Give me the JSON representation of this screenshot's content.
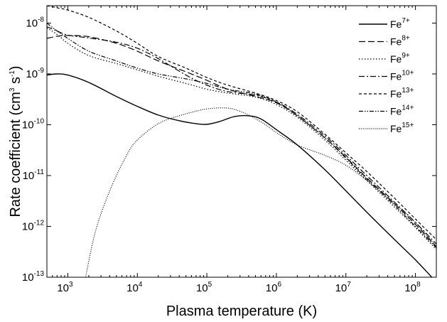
{
  "chart_data": {
    "type": "line",
    "title": "",
    "xlabel": "Plasma temperature (K)",
    "ylabel_parts": {
      "main": "Rate coefficient (cm",
      "sup1": "3",
      "mid": " s",
      "sup2": "-1",
      "end": ")"
    },
    "x_scale": "log",
    "y_scale": "log",
    "xlim": [
      500,
      200000000
    ],
    "ylim": [
      1e-13,
      2.2e-08
    ],
    "x_ticks": [
      {
        "value": 1000,
        "base": "10",
        "exp": "3"
      },
      {
        "value": 10000,
        "base": "10",
        "exp": "4"
      },
      {
        "value": 100000,
        "base": "10",
        "exp": "5"
      },
      {
        "value": 1000000,
        "base": "10",
        "exp": "6"
      },
      {
        "value": 10000000,
        "base": "10",
        "exp": "7"
      },
      {
        "value": 100000000,
        "base": "10",
        "exp": "8"
      }
    ],
    "y_ticks": [
      {
        "value": 1e-13,
        "base": "10",
        "exp": "-13"
      },
      {
        "value": 1e-12,
        "base": "10",
        "exp": "-12"
      },
      {
        "value": 1e-11,
        "base": "10",
        "exp": "-11"
      },
      {
        "value": 1e-10,
        "base": "10",
        "exp": "-10"
      },
      {
        "value": 1e-09,
        "base": "10",
        "exp": "-9"
      },
      {
        "value": 1e-08,
        "base": "10",
        "exp": "-8"
      }
    ],
    "grid": false,
    "legend_position": "top-right",
    "series": [
      {
        "name": "Fe",
        "charge": "7+",
        "dash": "solid",
        "x": [
          500,
          700,
          1000,
          2000,
          5000,
          10000,
          20000,
          40000,
          70000,
          100000,
          150000,
          250000,
          400000,
          600000,
          1000000,
          2000000,
          5000000,
          10000000,
          20000000,
          50000000,
          100000000,
          200000000
        ],
        "y": [
          9.5e-10,
          1e-09,
          9.5e-10,
          6.8e-10,
          3.6e-10,
          2.3e-10,
          1.55e-10,
          1.2e-10,
          1.05e-10,
          1.02e-10,
          1.15e-10,
          1.45e-10,
          1.5e-10,
          1.3e-10,
          8e-11,
          4e-11,
          1.3e-11,
          5e-12,
          1.9e-12,
          5.5e-13,
          2.2e-13,
          8e-14
        ]
      },
      {
        "name": "Fe",
        "charge": "8+",
        "dash": "long-dash",
        "x": [
          500,
          700,
          1000,
          2000,
          5000,
          10000,
          20000,
          50000,
          100000,
          200000,
          500000,
          1000000,
          2000000,
          5000000,
          10000000,
          20000000,
          50000000,
          100000000,
          200000000
        ],
        "y": [
          5e-09,
          5.5e-09,
          5.7e-09,
          5.4e-09,
          4e-09,
          2.8e-09,
          1.8e-09,
          1.1e-09,
          7.5e-10,
          5e-10,
          3.6e-10,
          2.7e-10,
          1.5e-10,
          5.5e-11,
          2.3e-11,
          9e-12,
          2.8e-12,
          1.1e-12,
          4e-13
        ]
      },
      {
        "name": "Fe",
        "charge": "9+",
        "dash": "dotted",
        "x": [
          500,
          700,
          1000,
          2000,
          5000,
          10000,
          20000,
          50000,
          100000,
          200000,
          500000,
          1000000,
          2000000,
          5000000,
          10000000,
          20000000,
          50000000,
          100000000,
          200000000
        ],
        "y": [
          8e-09,
          6e-09,
          4e-09,
          2.3e-09,
          1.6e-09,
          1.2e-09,
          9e-10,
          6.5e-10,
          5e-10,
          4.2e-10,
          3.5e-10,
          2.5e-10,
          1.4e-10,
          5e-11,
          2e-11,
          8e-12,
          2.4e-12,
          9.5e-13,
          3.5e-13
        ]
      },
      {
        "name": "Fe",
        "charge": "10+",
        "dash": "dash-dot",
        "x": [
          500,
          700,
          1000,
          2000,
          5000,
          10000,
          20000,
          50000,
          100000,
          200000,
          500000,
          1000000,
          2000000,
          5000000,
          10000000,
          20000000,
          50000000,
          100000000,
          200000000
        ],
        "y": [
          8.5e-09,
          7e-09,
          5.8e-09,
          5.1e-09,
          4.2e-09,
          3.2e-09,
          2e-09,
          9.5e-10,
          6e-10,
          4.5e-10,
          3.8e-10,
          2.8e-10,
          1.6e-10,
          6e-11,
          2.5e-11,
          1e-11,
          3e-12,
          1.2e-12,
          4.5e-13
        ]
      },
      {
        "name": "Fe",
        "charge": "13+",
        "dash": "short-dash",
        "x": [
          500,
          700,
          1000,
          2000,
          5000,
          10000,
          20000,
          50000,
          100000,
          200000,
          500000,
          1000000,
          2000000,
          5000000,
          10000000,
          20000000,
          50000000,
          100000000,
          200000000
        ],
        "y": [
          2.2e-08,
          2e-08,
          1.8e-08,
          1.3e-08,
          7e-09,
          4e-09,
          2.2e-09,
          1.3e-09,
          8.5e-10,
          6e-10,
          4.2e-10,
          3e-10,
          1.8e-10,
          6.5e-11,
          2.8e-11,
          1.2e-11,
          3.6e-12,
          1.4e-12,
          5.5e-13
        ]
      },
      {
        "name": "Fe",
        "charge": "14+",
        "dash": "dash-dot-dot",
        "x": [
          500,
          700,
          1000,
          2000,
          5000,
          10000,
          20000,
          50000,
          100000,
          200000,
          500000,
          1000000,
          2000000,
          5000000,
          10000000,
          20000000,
          50000000,
          100000000,
          200000000
        ],
        "y": [
          1e-08,
          7e-09,
          5e-09,
          2.8e-09,
          1.8e-09,
          1.3e-09,
          1e-09,
          8e-10,
          6.5e-10,
          5e-10,
          4e-10,
          2.8e-10,
          1.5e-10,
          5.5e-11,
          2.2e-11,
          8.5e-12,
          2.6e-12,
          1e-12,
          3.8e-13
        ]
      },
      {
        "name": "Fe",
        "charge": "15+",
        "dash": "fine-dot",
        "x": [
          1800,
          2500,
          4000,
          7000,
          10000,
          20000,
          40000,
          70000,
          100000,
          170000,
          250000,
          400000,
          700000,
          1000000,
          2000000,
          5000000,
          10000000,
          20000000,
          50000000,
          100000000,
          200000000
        ],
        "y": [
          1e-13,
          8e-13,
          5e-12,
          2.5e-11,
          5e-11,
          1.05e-10,
          1.5e-10,
          1.85e-10,
          2.05e-10,
          2.15e-10,
          2e-10,
          1.55e-10,
          1e-10,
          7e-11,
          4e-11,
          2.5e-11,
          1.6e-11,
          8e-12,
          2.8e-12,
          1.2e-12,
          4e-13
        ]
      }
    ]
  }
}
